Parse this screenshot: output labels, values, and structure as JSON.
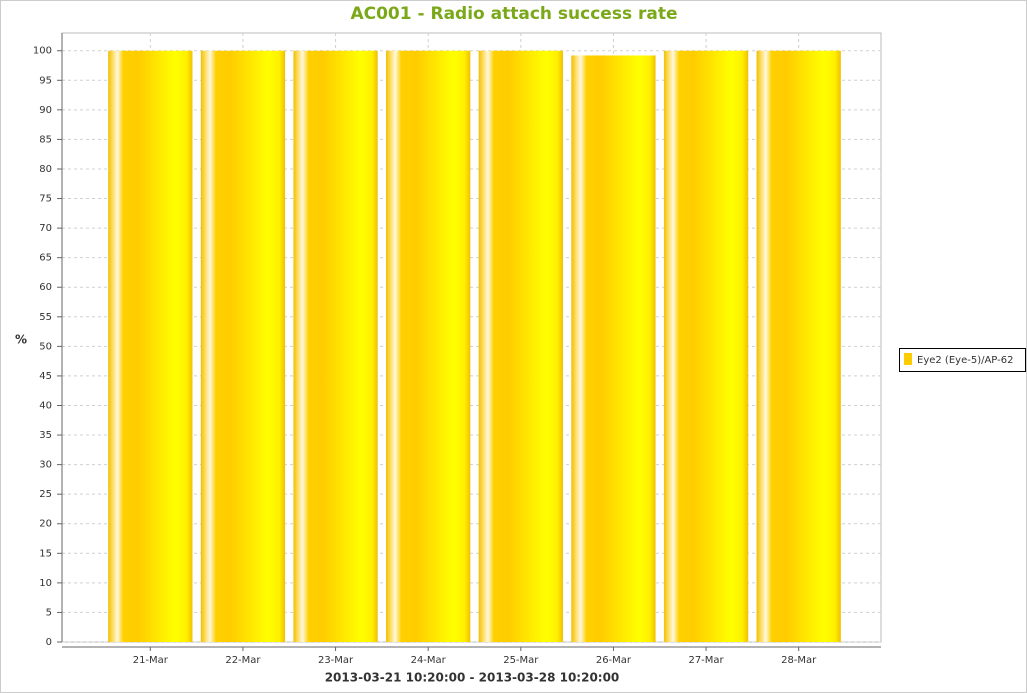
{
  "chart_data": {
    "type": "bar",
    "title": "AC001 - Radio attach success rate",
    "x_label": "2013-03-21 10:20:00 - 2013-03-28 10:20:00",
    "y_label": "%",
    "categories": [
      "21-Mar",
      "22-Mar",
      "23-Mar",
      "24-Mar",
      "25-Mar",
      "26-Mar",
      "27-Mar",
      "28-Mar"
    ],
    "series": [
      {
        "name": "Eye2 (Eye-5)/AP-62",
        "color": "#ffcc00",
        "values": [
          100,
          100,
          100,
          100,
          100,
          99.2,
          100,
          100
        ]
      }
    ],
    "ylim": [
      0,
      103
    ],
    "yticks": [
      0,
      5,
      10,
      15,
      20,
      25,
      30,
      35,
      40,
      45,
      50,
      55,
      60,
      65,
      70,
      75,
      80,
      85,
      90,
      95,
      100
    ],
    "grid": true,
    "legend": "right"
  }
}
